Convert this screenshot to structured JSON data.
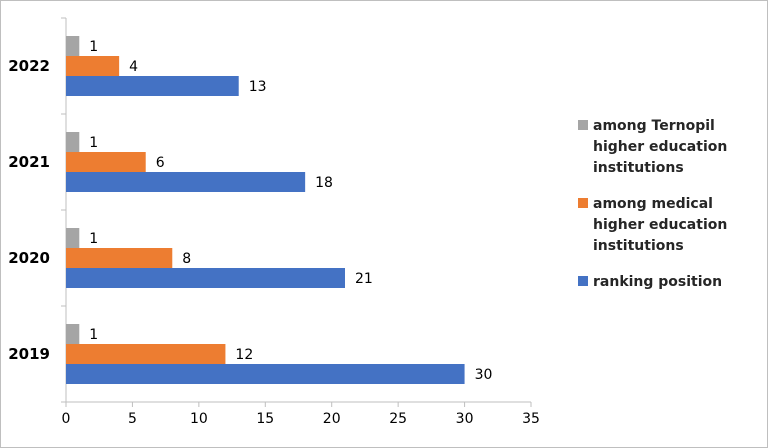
{
  "chart_data": {
    "type": "bar",
    "orientation": "horizontal",
    "categories": [
      "2019",
      "2020",
      "2021",
      "2022"
    ],
    "series": [
      {
        "name": "among Ternopil higher education institutions",
        "name_lines": [
          "among Ternopil",
          "higher education",
          "institutions"
        ],
        "color": "#a5a5a5",
        "values": [
          1,
          1,
          1,
          1
        ]
      },
      {
        "name": "among medical higher education institutions",
        "name_lines": [
          "among medical",
          "higher education",
          "institutions"
        ],
        "color": "#ed7d31",
        "values": [
          12,
          8,
          6,
          4
        ]
      },
      {
        "name": "ranking position",
        "name_lines": [
          "ranking position"
        ],
        "color": "#4472c4",
        "values": [
          30,
          21,
          18,
          13
        ]
      }
    ],
    "x_ticks": [
      0,
      5,
      10,
      15,
      20,
      25,
      30,
      35
    ],
    "xlim": [
      0,
      35
    ],
    "data_labels": true,
    "grid": false,
    "legend_position": "right"
  }
}
